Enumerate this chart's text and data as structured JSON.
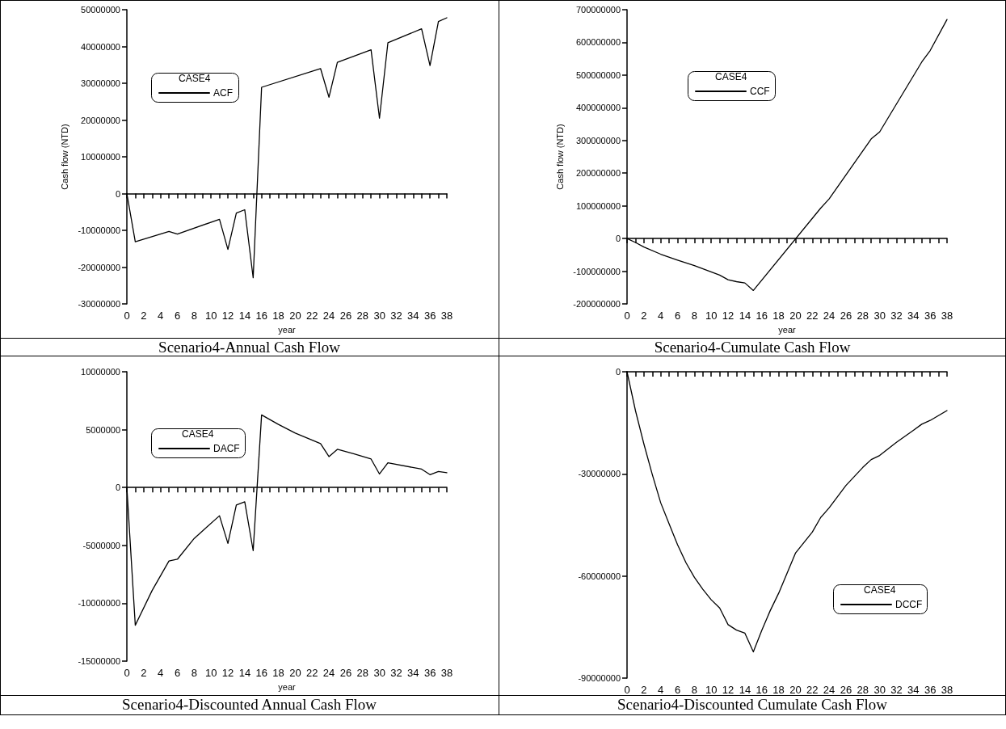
{
  "chart_data": [
    {
      "type": "line",
      "title": "Scenario4-Annual Cash Flow",
      "xlabel": "year",
      "ylabel": "Cash flow (NTD)",
      "legend_title": "CASE4",
      "legend": "top left",
      "marker": "none",
      "line_style": "solid",
      "xlim": [
        0,
        38
      ],
      "xticks": [
        0,
        2,
        4,
        6,
        8,
        10,
        12,
        14,
        16,
        18,
        20,
        22,
        24,
        26,
        28,
        30,
        32,
        34,
        36,
        38
      ],
      "ylim": [
        -30000000,
        50000000
      ],
      "yticks": [
        -30000000,
        -20000000,
        -10000000,
        0,
        10000000,
        20000000,
        30000000,
        40000000,
        50000000
      ],
      "x": [
        0,
        1,
        5,
        6,
        11,
        12,
        13,
        14,
        15,
        16,
        23,
        24,
        25,
        29,
        30,
        31,
        35,
        36,
        37,
        38
      ],
      "series": [
        {
          "name": "ACF",
          "color": "#000000",
          "values": [
            0,
            -13100000,
            -10300000,
            -11000000,
            -7000000,
            -15200000,
            -5300000,
            -4400000,
            -22900000,
            28900000,
            34000000,
            26200000,
            35700000,
            39100000,
            20500000,
            41000000,
            44800000,
            34800000,
            46800000,
            47800000
          ]
        }
      ]
    },
    {
      "type": "line",
      "title": "Scenario4-Cumulate Cash Flow",
      "xlabel": "year",
      "ylabel": "Cash flow (NTD)",
      "legend_title": "CASE4",
      "legend": "top",
      "marker": "none",
      "line_style": "solid",
      "xlim": [
        0,
        38
      ],
      "xticks": [
        0,
        2,
        4,
        6,
        8,
        10,
        12,
        14,
        16,
        18,
        20,
        22,
        24,
        26,
        28,
        30,
        32,
        34,
        36,
        38
      ],
      "ylim": [
        -200000000,
        700000000
      ],
      "yticks": [
        -200000000,
        -100000000,
        0,
        100000000,
        200000000,
        300000000,
        400000000,
        500000000,
        600000000,
        700000000
      ],
      "x": [
        0,
        1,
        2,
        4,
        6,
        8,
        11,
        12,
        13,
        14,
        15,
        23,
        24,
        29,
        30,
        35,
        36,
        38
      ],
      "series": [
        {
          "name": "CCF",
          "color": "#000000",
          "values": [
            0,
            -12000000,
            -26000000,
            -48000000,
            -66000000,
            -83000000,
            -112000000,
            -126000000,
            -132000000,
            -136000000,
            -159000000,
            93000000,
            121000000,
            305000000,
            326000000,
            540000000,
            575000000,
            670000000
          ]
        }
      ]
    },
    {
      "type": "line",
      "title": "Scenario4-Discounted Annual Cash Flow",
      "xlabel": "year",
      "legend_title": "CASE4",
      "legend": "top left",
      "marker": "none",
      "line_style": "solid",
      "xlim": [
        0,
        38
      ],
      "xticks": [
        0,
        2,
        4,
        6,
        8,
        10,
        12,
        14,
        16,
        18,
        20,
        22,
        24,
        26,
        28,
        30,
        32,
        34,
        36,
        38
      ],
      "ylim": [
        -15000000,
        10000000
      ],
      "yticks": [
        -15000000,
        -10000000,
        -5000000,
        0,
        5000000,
        10000000
      ],
      "x": [
        0,
        1,
        3,
        5,
        6,
        8,
        11,
        12,
        13,
        14,
        15,
        16,
        18,
        20,
        23,
        24,
        25,
        27,
        29,
        30,
        31,
        35,
        36,
        37,
        38
      ],
      "series": [
        {
          "name": "DACF",
          "color": "#000000",
          "values": [
            0,
            -11900000,
            -8900000,
            -6350000,
            -6200000,
            -4400000,
            -2440000,
            -4830000,
            -1520000,
            -1240000,
            -5450000,
            6270000,
            5450000,
            4700000,
            3800000,
            2670000,
            3300000,
            2900000,
            2460000,
            1170000,
            2130000,
            1590000,
            1110000,
            1390000,
            1280000
          ]
        }
      ]
    },
    {
      "type": "line",
      "title": "Scenario4-Discounted Cumulate Cash Flow",
      "legend_title": "CASE4",
      "legend": "right",
      "marker": "none",
      "line_style": "solid",
      "xlim": [
        0,
        38
      ],
      "xticks": [
        0,
        2,
        4,
        6,
        8,
        10,
        12,
        14,
        16,
        18,
        20,
        22,
        24,
        26,
        28,
        30,
        32,
        34,
        36,
        38
      ],
      "ylim": [
        -90000000,
        0
      ],
      "yticks": [
        -90000000,
        -60000000,
        -30000000,
        0
      ],
      "x": [
        0,
        1,
        2,
        3,
        4,
        5,
        6,
        7,
        8,
        9,
        10,
        11,
        12,
        13,
        14,
        15,
        16,
        17,
        18,
        20,
        22,
        23,
        24,
        26,
        28,
        29,
        30,
        32,
        34,
        35,
        36,
        38
      ],
      "series": [
        {
          "name": "DCCF",
          "color": "#000000",
          "values": [
            0,
            -11400000,
            -21200000,
            -30200000,
            -38500000,
            -44700000,
            -50800000,
            -56100000,
            -60400000,
            -63900000,
            -67000000,
            -69400000,
            -74300000,
            -75900000,
            -76800000,
            -82300000,
            -76000000,
            -70200000,
            -65100000,
            -53300000,
            -47100000,
            -42800000,
            -40000000,
            -33400000,
            -28100000,
            -25800000,
            -24600000,
            -20700000,
            -17200000,
            -15400000,
            -14300000,
            -11400000
          ]
        }
      ]
    }
  ]
}
